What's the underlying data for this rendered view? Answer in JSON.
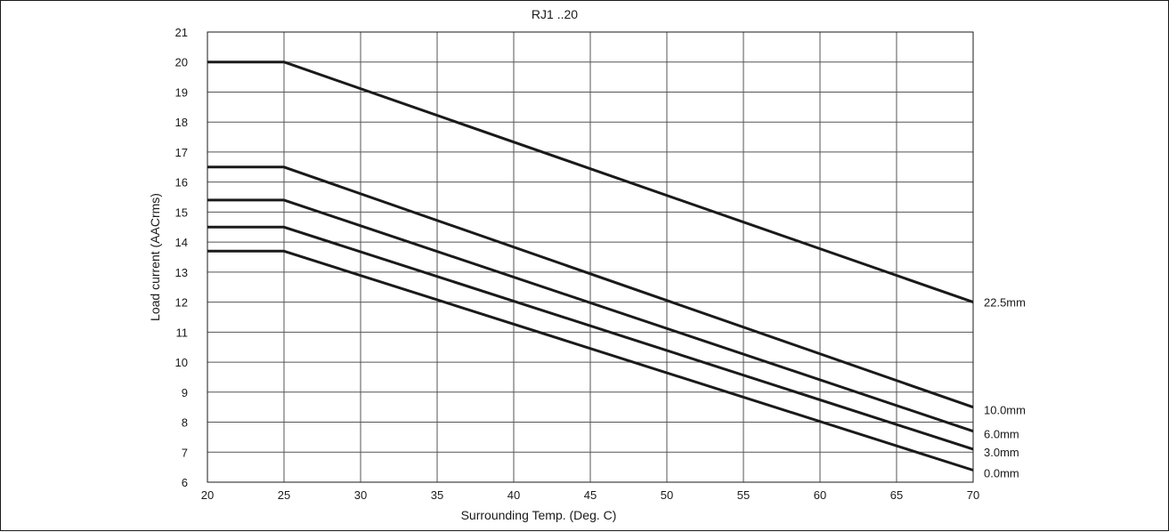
{
  "chart_data": {
    "type": "line",
    "title": "RJ1 ..20",
    "xlabel": "Surrounding Temp. (Deg. C)",
    "ylabel": "Load current (AACrms)",
    "xlim": [
      20,
      70
    ],
    "ylim": [
      6,
      21
    ],
    "xticks": [
      20,
      25,
      30,
      35,
      40,
      45,
      50,
      55,
      60,
      65,
      70
    ],
    "yticks": [
      6,
      7,
      8,
      9,
      10,
      11,
      12,
      13,
      14,
      15,
      16,
      17,
      18,
      19,
      20,
      21
    ],
    "grid": true,
    "legend": "inline-right",
    "colors": {
      "line": "#1a1a1a",
      "grid": "#555555"
    },
    "series": [
      {
        "name": "22.5mm",
        "x": [
          20,
          25,
          70
        ],
        "y": [
          20.0,
          20.0,
          12.0
        ]
      },
      {
        "name": "10.0mm",
        "x": [
          20,
          25,
          70
        ],
        "y": [
          16.5,
          16.5,
          8.5
        ]
      },
      {
        "name": "6.0mm",
        "x": [
          20,
          25,
          70
        ],
        "y": [
          15.4,
          15.4,
          7.7
        ]
      },
      {
        "name": "3.0mm",
        "x": [
          20,
          25,
          70
        ],
        "y": [
          14.5,
          14.5,
          7.1
        ]
      },
      {
        "name": "0.0mm",
        "x": [
          20,
          25,
          70
        ],
        "y": [
          13.7,
          13.7,
          6.4
        ]
      }
    ]
  }
}
